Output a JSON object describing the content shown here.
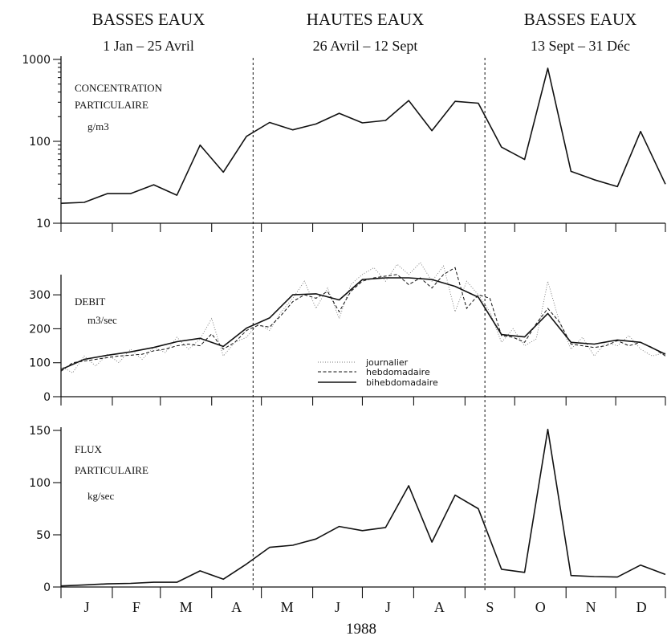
{
  "chart_data": {
    "type": "line",
    "periods": [
      {
        "title": "BASSES EAUX",
        "range": "1 Jan  –  25 Avril"
      },
      {
        "title": "HAUTES EAUX",
        "range": "26 Avril  –  12 Sept"
      },
      {
        "title": "BASSES EAUX",
        "range": "13 Sept  –  31 Déc"
      }
    ],
    "boundaries": [
      "1988-04-26",
      "1988-09-13"
    ],
    "months": [
      "J",
      "F",
      "M",
      "A",
      "M",
      "J",
      "J",
      "A",
      "S",
      "O",
      "N",
      "D"
    ],
    "xlabel": "1988",
    "legend": [
      "journalier",
      "hebdomadaire",
      "bihebdomadaire"
    ],
    "panels": [
      {
        "id": "concentration",
        "label": [
          "CONCENTRATION",
          "PARTICULAIRE",
          "g/m3"
        ],
        "scale": "log",
        "ylim": [
          10,
          1000
        ],
        "yticks": [
          10,
          100,
          1000
        ],
        "series": [
          {
            "x": [
              "1988-01-01",
              "1988-01-15",
              "1988-01-29",
              "1988-02-12",
              "1988-02-26",
              "1988-03-11",
              "1988-03-25",
              "1988-04-08",
              "1988-04-22",
              "1988-05-06",
              "1988-05-20",
              "1988-06-03",
              "1988-06-17",
              "1988-07-01",
              "1988-07-15",
              "1988-07-29",
              "1988-08-12",
              "1988-08-26",
              "1988-09-09",
              "1988-09-23",
              "1988-10-07",
              "1988-10-21",
              "1988-11-04",
              "1988-11-18",
              "1988-12-02",
              "1988-12-16",
              "1988-12-31"
            ],
            "y": [
              17.5,
              18,
              23,
              23,
              29.5,
              22,
              90,
              42,
              115,
              170,
              138,
              163,
              220,
              168,
              180,
              315,
              135,
              308,
              292,
              85,
              60,
              780,
              43,
              34,
              28,
              132,
              30
            ]
          }
        ]
      },
      {
        "id": "debit",
        "label": [
          "DEBIT",
          "m3/sec"
        ],
        "scale": "linear",
        "ylim": [
          0,
          350
        ],
        "yticks": [
          0,
          100,
          200,
          300
        ],
        "series": [
          {
            "name": "journalier",
            "x": [
              "1988-01-01",
              "1988-01-08",
              "1988-01-15",
              "1988-01-22",
              "1988-01-29",
              "1988-02-05",
              "1988-02-12",
              "1988-02-19",
              "1988-02-26",
              "1988-03-04",
              "1988-03-11",
              "1988-03-18",
              "1988-03-25",
              "1988-04-01",
              "1988-04-08",
              "1988-04-15",
              "1988-04-22",
              "1988-04-29",
              "1988-05-06",
              "1988-05-13",
              "1988-05-20",
              "1988-05-27",
              "1988-06-03",
              "1988-06-10",
              "1988-06-17",
              "1988-06-24",
              "1988-07-01",
              "1988-07-08",
              "1988-07-15",
              "1988-07-22",
              "1988-07-29",
              "1988-08-05",
              "1988-08-12",
              "1988-08-19",
              "1988-08-26",
              "1988-09-02",
              "1988-09-09",
              "1988-09-16",
              "1988-09-23",
              "1988-09-30",
              "1988-10-07",
              "1988-10-14",
              "1988-10-21",
              "1988-10-28",
              "1988-11-04",
              "1988-11-11",
              "1988-11-18",
              "1988-11-25",
              "1988-12-02",
              "1988-12-09",
              "1988-12-16",
              "1988-12-23",
              "1988-12-31"
            ],
            "y": [
              90,
              70,
              120,
              90,
              125,
              100,
              140,
              110,
              145,
              130,
              175,
              140,
              170,
              230,
              120,
              160,
              175,
              215,
              195,
              250,
              290,
              340,
              260,
              320,
              230,
              330,
              360,
              380,
              340,
              390,
              360,
              395,
              340,
              385,
              250,
              340,
              300,
              250,
              160,
              200,
              150,
              170,
              340,
              220,
              140,
              175,
              120,
              160,
              150,
              180,
              140,
              120,
              130
            ]
          },
          {
            "name": "hebdomadaire",
            "x": [
              "1988-01-01",
              "1988-01-08",
              "1988-01-15",
              "1988-01-22",
              "1988-01-29",
              "1988-02-05",
              "1988-02-12",
              "1988-02-19",
              "1988-02-26",
              "1988-03-04",
              "1988-03-11",
              "1988-03-18",
              "1988-03-25",
              "1988-04-01",
              "1988-04-08",
              "1988-04-15",
              "1988-04-22",
              "1988-04-29",
              "1988-05-06",
              "1988-05-13",
              "1988-05-20",
              "1988-05-27",
              "1988-06-03",
              "1988-06-10",
              "1988-06-17",
              "1988-06-24",
              "1988-07-01",
              "1988-07-08",
              "1988-07-15",
              "1988-07-22",
              "1988-07-29",
              "1988-08-05",
              "1988-08-12",
              "1988-08-19",
              "1988-08-26",
              "1988-09-02",
              "1988-09-09",
              "1988-09-16",
              "1988-09-23",
              "1988-09-30",
              "1988-10-07",
              "1988-10-14",
              "1988-10-21",
              "1988-10-28",
              "1988-11-04",
              "1988-11-11",
              "1988-11-18",
              "1988-11-25",
              "1988-12-02",
              "1988-12-09",
              "1988-12-16",
              "1988-12-23",
              "1988-12-31"
            ],
            "y": [
              75,
              100,
              105,
              110,
              115,
              120,
              122,
              125,
              135,
              140,
              150,
              155,
              150,
              185,
              140,
              160,
              195,
              210,
              205,
              240,
              280,
              300,
              290,
              310,
              250,
              310,
              340,
              350,
              355,
              360,
              330,
              350,
              320,
              360,
              380,
              260,
              300,
              290,
              180,
              175,
              160,
              215,
              260,
              220,
              155,
              150,
              145,
              150,
              165,
              150,
              160,
              145,
              120
            ]
          },
          {
            "name": "bihebdomadaire",
            "x": [
              "1988-01-01",
              "1988-01-15",
              "1988-01-29",
              "1988-02-12",
              "1988-02-26",
              "1988-03-11",
              "1988-03-25",
              "1988-04-08",
              "1988-04-22",
              "1988-05-06",
              "1988-05-20",
              "1988-06-03",
              "1988-06-17",
              "1988-07-01",
              "1988-07-15",
              "1988-07-29",
              "1988-08-12",
              "1988-08-26",
              "1988-09-09",
              "1988-09-23",
              "1988-10-07",
              "1988-10-21",
              "1988-11-04",
              "1988-11-18",
              "1988-12-02",
              "1988-12-16",
              "1988-12-31"
            ],
            "y": [
              80,
              110,
              122,
              132,
              145,
              162,
              172,
              148,
              202,
              232,
              300,
              303,
              285,
              345,
              350,
              350,
              345,
              325,
              293,
              183,
              176,
              245,
              160,
              155,
              167,
              160,
              125
            ]
          }
        ]
      },
      {
        "id": "flux",
        "label": [
          "FLUX",
          "PARTICULAIRE",
          "kg/sec"
        ],
        "scale": "linear",
        "ylim": [
          0,
          150
        ],
        "yticks": [
          0,
          50,
          100,
          150
        ],
        "series": [
          {
            "x": [
              "1988-01-01",
              "1988-01-15",
              "1988-01-29",
              "1988-02-12",
              "1988-02-26",
              "1988-03-11",
              "1988-03-25",
              "1988-04-08",
              "1988-04-22",
              "1988-05-06",
              "1988-05-20",
              "1988-06-03",
              "1988-06-17",
              "1988-07-01",
              "1988-07-15",
              "1988-07-29",
              "1988-08-12",
              "1988-08-26",
              "1988-09-09",
              "1988-09-23",
              "1988-10-07",
              "1988-10-21",
              "1988-11-04",
              "1988-11-18",
              "1988-12-02",
              "1988-12-16",
              "1988-12-31"
            ],
            "y": [
              1,
              2,
              3,
              3.5,
              4.5,
              4.5,
              15.5,
              7.5,
              22,
              38,
              40,
              46,
              58,
              54,
              57,
              97,
              43,
              88,
              75,
              17,
              14,
              151,
              11,
              10,
              9.5,
              21,
              12
            ]
          }
        ]
      }
    ]
  }
}
